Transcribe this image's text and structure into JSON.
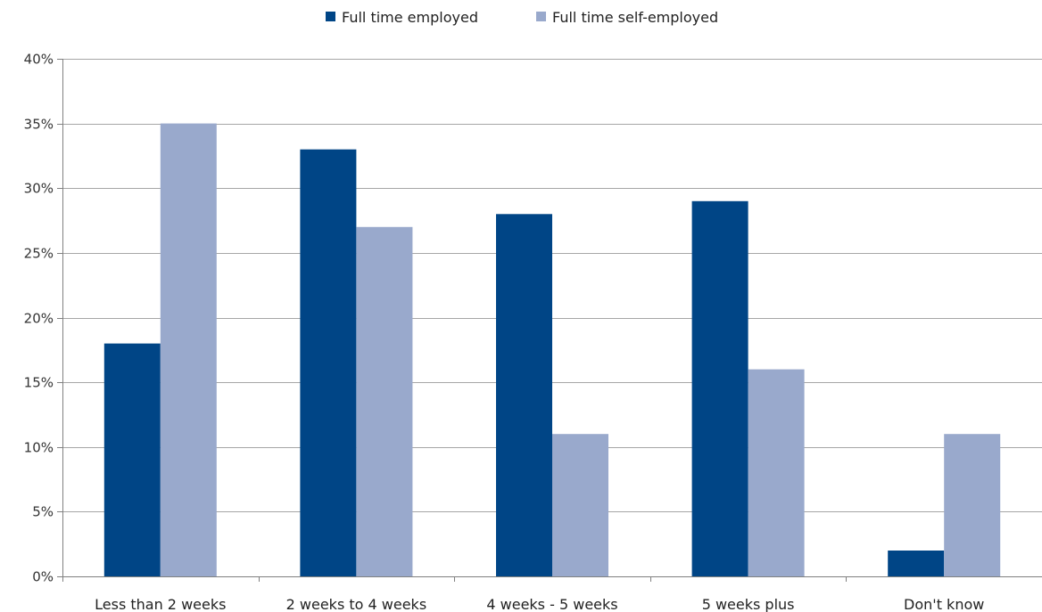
{
  "chart_data": {
    "type": "bar",
    "categories": [
      "Less than 2 weeks",
      "2 weeks to 4 weeks",
      "4 weeks - 5 weeks",
      "5 weeks plus",
      "Don't know"
    ],
    "series": [
      {
        "name": "Full time employed",
        "values": [
          18,
          33,
          28,
          29,
          2
        ],
        "color": "#004586"
      },
      {
        "name": "Full time self-employed",
        "values": [
          35,
          27,
          11,
          16,
          11
        ],
        "color": "#99a9cc"
      }
    ],
    "y_ticks": [
      "0%",
      "5%",
      "10%",
      "15%",
      "20%",
      "25%",
      "30%",
      "35%",
      "40%"
    ],
    "ylim": [
      0,
      40
    ],
    "grid": true,
    "legend_position": "top-center",
    "gridline_color": "#a6a6a6",
    "axis_color": "#808080"
  }
}
